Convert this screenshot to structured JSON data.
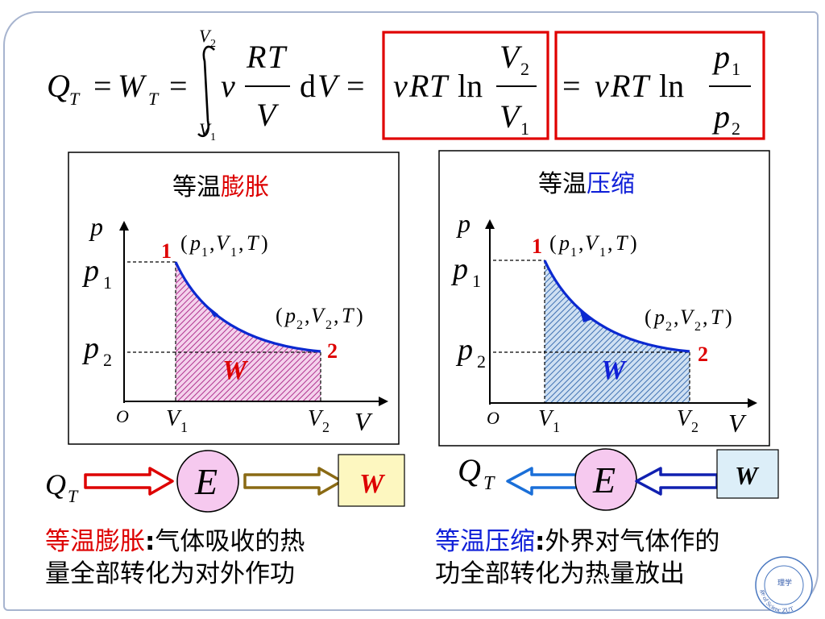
{
  "formula": {
    "Q": "Q",
    "T": "T",
    "eq": "=",
    "W": "W",
    "nu": "ν",
    "R": "R",
    "V": "V",
    "p": "p",
    "d": "d",
    "ln": "ln",
    "one": "1",
    "two": "2",
    "limit_upper_V": "V",
    "limit_upper_sub": "2",
    "limit_lower_V": "V",
    "limit_lower_sub": "1"
  },
  "graph_expansion": {
    "title_prefix": "等温",
    "title_highlight": "膨胀",
    "highlight_color": "#dd0000",
    "p_axis": "p",
    "v_axis": "V",
    "origin": "O",
    "p1": "p",
    "p1_sub": "1",
    "p2": "p",
    "p2_sub": "2",
    "v1": "V",
    "v1_sub": "1",
    "v2": "V",
    "v2_sub": "2",
    "point1_label": "1",
    "point2_label": "2",
    "state1": {
      "open": "(",
      "p": "p",
      "p_sub": "1",
      "c1": ",",
      "V": "V",
      "V_sub": "1",
      "c2": ",",
      "T": "T",
      "close": ")"
    },
    "state2": {
      "open": "(",
      "p": "p",
      "p_sub": "2",
      "c1": ",",
      "V": "V",
      "V_sub": "2",
      "c2": ",",
      "T": "T",
      "close": ")"
    },
    "work_label": "W",
    "fill_color": "#cc4fa8",
    "curve_color": "#0b29d0"
  },
  "graph_compression": {
    "title_prefix": "等温",
    "title_highlight": "压缩",
    "highlight_color": "#1020d8",
    "p_axis": "p",
    "v_axis": "V",
    "origin": "O",
    "p1": "p",
    "p1_sub": "1",
    "p2": "p",
    "p2_sub": "2",
    "v1": "V",
    "v1_sub": "1",
    "v2": "V",
    "v2_sub": "2",
    "point1_label": "1",
    "point2_label": "2",
    "state1": {
      "open": "(",
      "p": "p",
      "p_sub": "1",
      "c1": ",",
      "V": "V",
      "V_sub": "1",
      "c2": ",",
      "T": "T",
      "close": ")"
    },
    "state2": {
      "open": "(",
      "p": "p",
      "p_sub": "2",
      "c1": ",",
      "V": "V",
      "V_sub": "2",
      "c2": ",",
      "T": "T",
      "close": ")"
    },
    "work_label": "W",
    "fill_color": "#4e86c6",
    "curve_color": "#0b29d0"
  },
  "flow_expansion": {
    "q": "Q",
    "q_sub": "T",
    "energy": "E",
    "work": "W"
  },
  "flow_compression": {
    "q": "Q",
    "q_sub": "T",
    "energy": "E",
    "work": "W"
  },
  "caption_expansion": {
    "highlight": "等温膨胀",
    "colon": ":",
    "line1": "气体吸收的热",
    "line2": "量全部转化为对外作功"
  },
  "caption_compression": {
    "highlight": "等温压缩",
    "colon": ":",
    "line1": "外界对气体作的",
    "line2": "功全部转化为热量放出"
  },
  "seal": {
    "text": "ge of Scienc.ZUT",
    "glyph": "理学"
  },
  "colors": {
    "red_box": "#e00000",
    "red": "#dd0000",
    "blue": "#1020d8",
    "border": "#a7b4cf"
  }
}
